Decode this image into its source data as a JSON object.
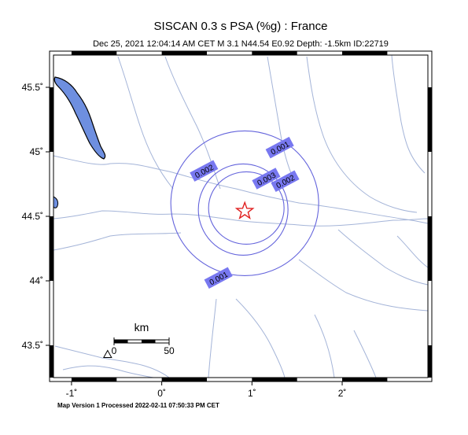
{
  "title": "SISCAN 0.3 s PSA (%g) : France",
  "subtitle": "Dec 25, 2021 12:04:14 AM CET   M 3.1    N44.54 E0.92   Depth: -1.5km   ID:22719",
  "footer": "Map Version 1 Processed 2022-02-11 07:50:33 PM CET",
  "map": {
    "lon_range": [
      -1.2,
      2.95
    ],
    "lat_range": [
      43.25,
      45.75
    ],
    "epicenter": {
      "lon": 0.92,
      "lat": 44.54
    },
    "colors": {
      "river": "#a4b4d8",
      "contour": "#6464dc",
      "label_bg": "#7878f0",
      "water": "#6e8fe0",
      "epicenter": "#e02020"
    },
    "x_ticks": [
      {
        "value": -1,
        "label": "-1˚"
      },
      {
        "value": 0,
        "label": "0˚"
      },
      {
        "value": 1,
        "label": "1˚"
      },
      {
        "value": 2,
        "label": "2˚"
      }
    ],
    "y_ticks": [
      {
        "value": 45.5,
        "label": "45.5˚"
      },
      {
        "value": 45,
        "label": "45˚"
      },
      {
        "value": 44.5,
        "label": "44.5˚"
      },
      {
        "value": 44,
        "label": "44˚"
      },
      {
        "value": 43.5,
        "label": "43.5˚"
      }
    ],
    "contours": [
      {
        "level": 0.001,
        "label": "0.001"
      },
      {
        "level": 0.002,
        "label": "0.002"
      },
      {
        "level": 0.003,
        "label": "0.003"
      }
    ],
    "contour_labels": [
      {
        "text": "0.001",
        "lon": 1.31,
        "lat": 45.03
      },
      {
        "text": "0.002",
        "lon": 0.47,
        "lat": 44.85
      },
      {
        "text": "0.002",
        "lon": 1.37,
        "lat": 44.77
      },
      {
        "text": "0.003",
        "lon": 1.16,
        "lat": 44.79
      },
      {
        "text": "0.001",
        "lon": 0.63,
        "lat": 44.02
      }
    ],
    "station": {
      "name": "station-triangle",
      "lon": -0.6,
      "lat": 43.43
    },
    "scale_bar": {
      "unit": "km",
      "left_label": "0",
      "right_label": "50"
    }
  }
}
